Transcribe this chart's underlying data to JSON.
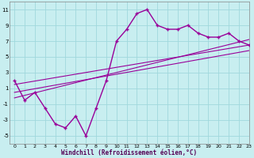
{
  "xlabel": "Windchill (Refroidissement éolien,°C)",
  "background_color": "#c8eef0",
  "grid_color": "#a0d8dc",
  "line_color": "#990099",
  "hours": [
    0,
    1,
    2,
    3,
    4,
    5,
    6,
    7,
    8,
    9,
    10,
    11,
    12,
    13,
    14,
    15,
    16,
    17,
    18,
    19,
    20,
    21,
    22,
    23
  ],
  "windchill": [
    2,
    -0.5,
    0.5,
    -1.5,
    -3.5,
    -4,
    -2.5,
    -5,
    -1.5,
    2,
    7,
    8.5,
    10.5,
    11,
    9,
    8.5,
    8.5,
    9,
    8,
    7.5,
    7.5,
    8,
    7,
    6.5
  ],
  "reg_lines": [
    {
      "x": [
        0,
        23
      ],
      "y": [
        -0.2,
        7.2
      ]
    },
    {
      "x": [
        0,
        23
      ],
      "y": [
        0.5,
        5.8
      ]
    },
    {
      "x": [
        0,
        23
      ],
      "y": [
        1.5,
        6.5
      ]
    }
  ],
  "ylim": [
    -6,
    12
  ],
  "xlim": [
    -0.5,
    23
  ],
  "yticks": [
    -5,
    -3,
    -1,
    1,
    3,
    5,
    7,
    9,
    11
  ],
  "xticks": [
    0,
    1,
    2,
    3,
    4,
    5,
    6,
    7,
    8,
    9,
    10,
    11,
    12,
    13,
    14,
    15,
    16,
    17,
    18,
    19,
    20,
    21,
    22,
    23
  ]
}
